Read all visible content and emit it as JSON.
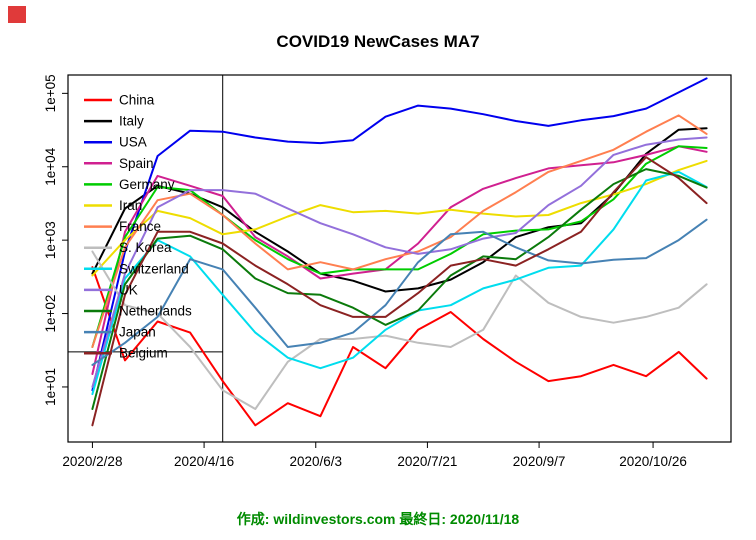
{
  "window": {
    "corner_marker_color": "#e03a3a"
  },
  "chart": {
    "caption": "作成: wildinvestors.com 最終日: 2020/11/18",
    "caption_color": "#008B00"
  },
  "chart_data": {
    "type": "line",
    "title": "COVID19 NewCases MA7",
    "y_scale": "log10",
    "grid": false,
    "legend_position": "topleft",
    "ylim": [
      2,
      200000
    ],
    "y_tick_labels": [
      "1e+01",
      "1e+02",
      "1e+03",
      "1e+04",
      "1e+05"
    ],
    "y_tick_values": [
      10,
      100,
      1000,
      10000,
      100000
    ],
    "x_tick_labels": [
      "2020/2/28",
      "2020/4/16",
      "2020/6/3",
      "2020/7/21",
      "2020/9/7",
      "2020/10/26"
    ],
    "x_tick_day_offsets": [
      0,
      48,
      96,
      144,
      192,
      241
    ],
    "x_dates": [
      "2020/2/28",
      "2020/3/13",
      "2020/3/27",
      "2020/4/10",
      "2020/4/24",
      "2020/5/8",
      "2020/5/22",
      "2020/6/5",
      "2020/6/19",
      "2020/7/3",
      "2020/7/17",
      "2020/7/31",
      "2020/8/14",
      "2020/8/28",
      "2020/9/11",
      "2020/9/25",
      "2020/10/9",
      "2020/10/23",
      "2020/11/6",
      "2020/11/18"
    ],
    "x_day_offsets": [
      0,
      14,
      28,
      42,
      56,
      70,
      84,
      98,
      112,
      126,
      140,
      154,
      168,
      182,
      196,
      210,
      224,
      238,
      252,
      264
    ],
    "reference_lines": {
      "vertical_date": "2020/4/24",
      "vertical_day_offset": 56,
      "horizontal_value": 30,
      "note": "horizontal line spans from left axis to the vertical line"
    },
    "series": [
      {
        "name": "China",
        "color": "#FF0000",
        "values": [
          430,
          23,
          78,
          55,
          12,
          3,
          6,
          4,
          35,
          18,
          60,
          105,
          45,
          22,
          12,
          14,
          20,
          14,
          30,
          13
        ]
      },
      {
        "name": "Italy",
        "color": "#000000",
        "values": [
          350,
          2700,
          5500,
          4300,
          2800,
          1300,
          700,
          350,
          280,
          200,
          220,
          290,
          500,
          1100,
          1500,
          1700,
          4300,
          15000,
          32000,
          33500
        ]
      },
      {
        "name": "USA",
        "color": "#0000EE",
        "values": [
          9,
          700,
          14000,
          31000,
          30000,
          25000,
          22000,
          21000,
          23000,
          48000,
          68000,
          62000,
          52000,
          42000,
          36000,
          43000,
          49000,
          62000,
          103000,
          160000
        ]
      },
      {
        "name": "Spain",
        "color": "#D02090",
        "values": [
          15,
          1300,
          7500,
          5500,
          4000,
          1100,
          600,
          300,
          350,
          400,
          900,
          2800,
          5000,
          7000,
          9500,
          10500,
          11500,
          14500,
          19000,
          16000
        ]
      },
      {
        "name": "Germany",
        "color": "#00CC00",
        "values": [
          35,
          1100,
          5300,
          4800,
          2200,
          1000,
          550,
          350,
          400,
          400,
          400,
          650,
          1200,
          1350,
          1400,
          1800,
          3600,
          11000,
          19000,
          18000
        ]
      },
      {
        "name": "Iran",
        "color": "#EEDD00",
        "values": [
          330,
          1000,
          2500,
          2000,
          1200,
          1400,
          2100,
          3000,
          2400,
          2500,
          2300,
          2600,
          2300,
          2100,
          2200,
          3200,
          4200,
          5800,
          9000,
          12000
        ]
      },
      {
        "name": "France",
        "color": "#FF7F50",
        "values": [
          35,
          800,
          3500,
          4300,
          2200,
          900,
          400,
          500,
          400,
          550,
          700,
          1100,
          2500,
          4500,
          8500,
          12000,
          17000,
          30000,
          50000,
          28000
        ]
      },
      {
        "name": "S. Korea",
        "color": "#BEBEBE",
        "values": [
          700,
          130,
          100,
          35,
          9,
          5,
          22,
          45,
          45,
          50,
          40,
          35,
          60,
          330,
          140,
          90,
          75,
          90,
          120,
          250
        ]
      },
      {
        "name": "Switzerland",
        "color": "#00DDEE",
        "values": [
          8,
          300,
          1000,
          600,
          180,
          55,
          25,
          18,
          25,
          60,
          110,
          130,
          220,
          290,
          420,
          450,
          1400,
          6500,
          8500,
          5300
        ]
      },
      {
        "name": "UK",
        "color": "#9370DB",
        "values": [
          10,
          350,
          2800,
          4800,
          4800,
          4300,
          2700,
          1700,
          1200,
          800,
          650,
          750,
          1050,
          1250,
          3000,
          5500,
          14500,
          20000,
          23500,
          25000
        ]
      },
      {
        "name": "Netherlands",
        "color": "#0B7A0B",
        "values": [
          5,
          250,
          1050,
          1150,
          750,
          300,
          190,
          180,
          120,
          70,
          110,
          330,
          600,
          550,
          1100,
          2600,
          5800,
          9300,
          7500,
          5200
        ]
      },
      {
        "name": "Japan",
        "color": "#4682B4",
        "values": [
          20,
          40,
          90,
          550,
          400,
          120,
          35,
          40,
          55,
          130,
          500,
          1200,
          1300,
          800,
          530,
          480,
          540,
          570,
          1000,
          1900
        ]
      },
      {
        "name": "Belgium",
        "color": "#8B2222",
        "values": [
          3,
          180,
          1300,
          1300,
          900,
          450,
          250,
          130,
          90,
          90,
          190,
          450,
          550,
          450,
          750,
          1300,
          4500,
          13500,
          7000,
          3200
        ]
      }
    ]
  }
}
